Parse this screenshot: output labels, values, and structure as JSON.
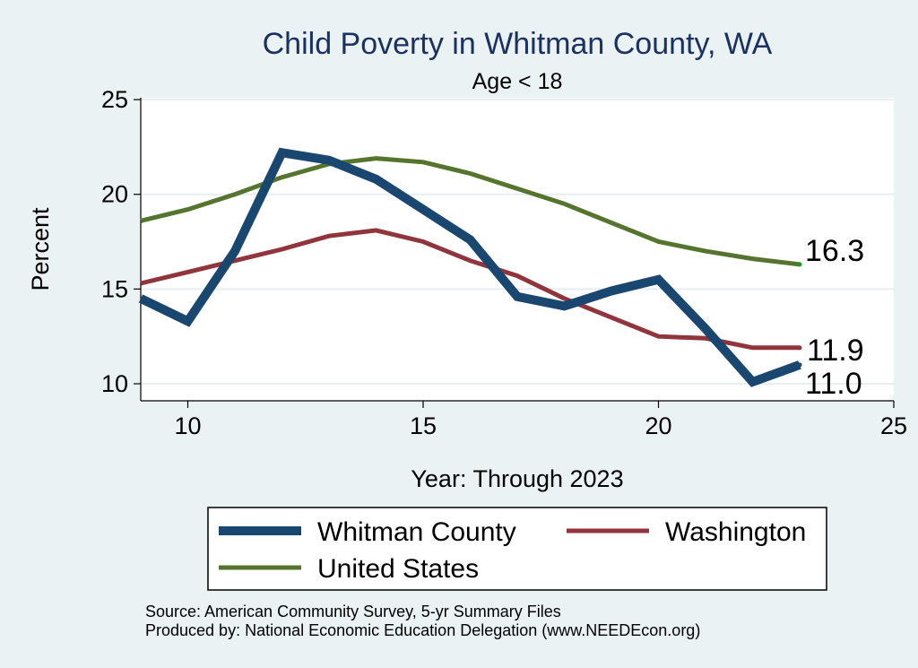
{
  "chart_data": {
    "type": "line",
    "title": "Child Poverty in Whitman County, WA",
    "subtitle": "Age < 18",
    "xlabel": "Year: Through 2023",
    "ylabel": "Percent",
    "xlim": [
      9,
      25
    ],
    "ylim": [
      9.1,
      25.1
    ],
    "xticks": [
      10,
      15,
      20,
      25
    ],
    "yticks": [
      10,
      15,
      20,
      25
    ],
    "grid": true,
    "legend_position": "bottom",
    "series": [
      {
        "name": "Whitman County",
        "color": "#1a476f",
        "x": [
          9,
          10,
          11,
          12,
          13,
          14,
          15,
          16,
          17,
          18,
          19,
          20,
          21,
          22,
          23
        ],
        "y": [
          14.5,
          13.3,
          17.0,
          22.2,
          21.8,
          20.8,
          19.2,
          17.6,
          14.6,
          14.1,
          14.9,
          15.5,
          12.9,
          10.1,
          11.0
        ],
        "end_label": "11.0"
      },
      {
        "name": "Washington",
        "color": "#90353b",
        "x": [
          9,
          10,
          11,
          12,
          13,
          14,
          15,
          16,
          17,
          18,
          19,
          20,
          21,
          22,
          23
        ],
        "y": [
          15.3,
          15.9,
          16.5,
          17.1,
          17.8,
          18.1,
          17.5,
          16.5,
          15.7,
          14.5,
          13.5,
          12.5,
          12.4,
          11.9,
          11.9
        ],
        "end_label": "11.9"
      },
      {
        "name": "United States",
        "color": "#55752f",
        "x": [
          9,
          10,
          11,
          12,
          13,
          14,
          15,
          16,
          17,
          18,
          19,
          20,
          21,
          22,
          23
        ],
        "y": [
          18.6,
          19.2,
          20.0,
          20.9,
          21.6,
          21.9,
          21.7,
          21.1,
          20.3,
          19.5,
          18.5,
          17.5,
          17.0,
          16.6,
          16.3
        ],
        "end_label": "16.3"
      }
    ]
  },
  "footer": {
    "source_line": "Source: American Community Survey, 5-yr Summary Files",
    "produced_line": "Produced by: National Economic Education Delegation (www.NEEDEcon.org)"
  }
}
